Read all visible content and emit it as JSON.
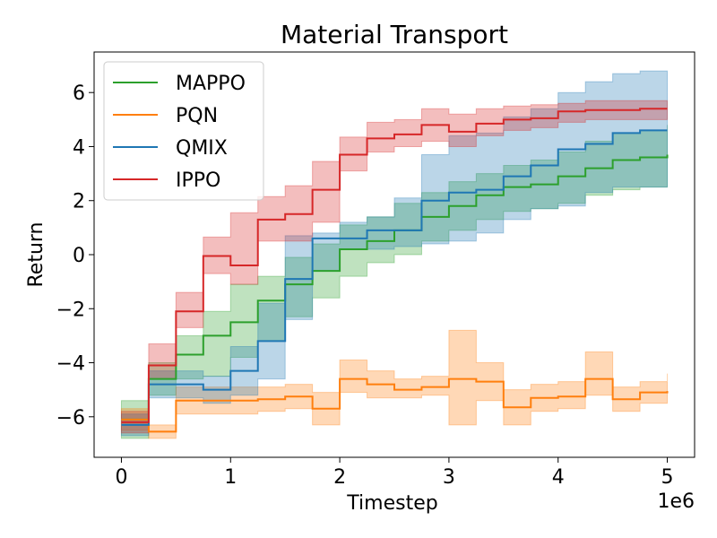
{
  "chart_data": {
    "type": "line",
    "title": "Material Transport",
    "xlabel": "Timestep",
    "ylabel": "Return",
    "x_offset_label": "1e6",
    "xlim": [
      -0.25,
      5.25
    ],
    "ylim": [
      -7.5,
      7.5
    ],
    "xticks": [
      0,
      1,
      2,
      3,
      4,
      5
    ],
    "xtick_labels": [
      "0",
      "1",
      "2",
      "3",
      "4",
      "5"
    ],
    "yticks": [
      -6,
      -4,
      -2,
      0,
      2,
      4,
      6
    ],
    "ytick_labels": [
      "−6",
      "−4",
      "−2",
      "0",
      "2",
      "4",
      "6"
    ],
    "grid": false,
    "legend_position": "upper-left",
    "x": [
      0,
      0.25,
      0.5,
      0.75,
      1,
      1.25,
      1.5,
      1.75,
      2,
      2.25,
      2.5,
      2.75,
      3,
      3.25,
      3.5,
      3.75,
      4,
      4.25,
      4.5,
      4.75,
      5
    ],
    "series": [
      {
        "name": "MAPPO",
        "color": "#2ca02c",
        "values": [
          -6.1,
          -4.6,
          -3.7,
          -3.0,
          -2.5,
          -1.7,
          -1.1,
          -0.6,
          0.2,
          0.5,
          0.9,
          1.4,
          1.8,
          2.2,
          2.5,
          2.6,
          2.9,
          3.2,
          3.5,
          3.6,
          3.7
        ],
        "lower": [
          -6.8,
          -5.2,
          -4.6,
          -4.5,
          -3.8,
          -3.2,
          -2.3,
          -1.6,
          -0.8,
          -0.3,
          0.0,
          0.5,
          0.9,
          1.3,
          1.6,
          1.7,
          1.9,
          2.2,
          2.4,
          2.5,
          2.6
        ],
        "upper": [
          -5.4,
          -4.0,
          -3.0,
          -2.1,
          -1.1,
          -0.8,
          -0.1,
          0.4,
          1.1,
          1.4,
          1.9,
          2.3,
          2.7,
          3.0,
          3.3,
          3.5,
          3.8,
          4.2,
          4.5,
          4.6,
          4.8
        ]
      },
      {
        "name": "PQN",
        "color": "#ff7f0e",
        "values": [
          -6.1,
          -6.55,
          -5.4,
          -5.4,
          -5.4,
          -5.35,
          -5.25,
          -5.7,
          -4.6,
          -4.8,
          -5.0,
          -4.9,
          -4.6,
          -4.7,
          -5.65,
          -5.3,
          -5.25,
          -4.6,
          -5.35,
          -5.1,
          -5.05
        ],
        "lower": [
          -6.5,
          -6.8,
          -5.9,
          -5.9,
          -5.9,
          -5.8,
          -5.7,
          -6.3,
          -5.1,
          -5.3,
          -5.3,
          -5.2,
          -6.3,
          -5.4,
          -6.3,
          -5.8,
          -5.7,
          -5.2,
          -5.8,
          -5.5,
          -5.5
        ],
        "upper": [
          -5.7,
          -6.3,
          -4.9,
          -4.9,
          -4.9,
          -4.9,
          -4.8,
          -5.1,
          -3.9,
          -4.3,
          -4.6,
          -4.5,
          -2.8,
          -4.0,
          -5.0,
          -4.8,
          -4.7,
          -3.6,
          -4.9,
          -4.7,
          -4.4
        ]
      },
      {
        "name": "QMIX",
        "color": "#1f77b4",
        "values": [
          -6.3,
          -4.8,
          -4.8,
          -5.0,
          -4.3,
          -3.2,
          -0.9,
          0.6,
          0.6,
          0.9,
          0.9,
          2.0,
          2.3,
          2.4,
          2.9,
          3.3,
          3.9,
          4.1,
          4.5,
          4.6,
          4.6
        ],
        "lower": [
          -6.7,
          -5.3,
          -5.3,
          -5.5,
          -5.2,
          -4.6,
          -2.4,
          -0.6,
          0.2,
          0.2,
          0.3,
          0.4,
          0.5,
          0.8,
          1.3,
          1.7,
          1.8,
          2.3,
          2.5,
          2.5,
          2.5
        ],
        "upper": [
          -5.9,
          -4.3,
          -4.3,
          -4.5,
          -3.4,
          -1.8,
          0.7,
          0.8,
          1.2,
          1.4,
          2.1,
          3.7,
          4.4,
          4.5,
          5.1,
          5.4,
          6.0,
          6.4,
          6.7,
          6.8,
          6.8
        ]
      },
      {
        "name": "IPPO",
        "color": "#d62728",
        "values": [
          -6.2,
          -4.1,
          -2.1,
          -0.05,
          -0.4,
          1.3,
          1.5,
          2.4,
          3.7,
          4.3,
          4.45,
          4.8,
          4.55,
          4.85,
          5.0,
          5.05,
          5.3,
          5.35,
          5.35,
          5.4,
          5.4
        ],
        "lower": [
          -6.6,
          -4.6,
          -2.7,
          -0.7,
          -1.1,
          0.5,
          0.5,
          1.2,
          3.1,
          3.8,
          4.0,
          4.2,
          4.0,
          4.4,
          4.6,
          4.7,
          4.9,
          5.0,
          5.0,
          5.0,
          5.0
        ],
        "upper": [
          -5.8,
          -3.3,
          -1.4,
          0.65,
          1.55,
          2.15,
          2.55,
          3.45,
          4.35,
          4.9,
          5.0,
          5.4,
          5.2,
          5.4,
          5.5,
          5.55,
          5.6,
          5.7,
          5.7,
          5.7,
          5.7
        ]
      }
    ]
  }
}
